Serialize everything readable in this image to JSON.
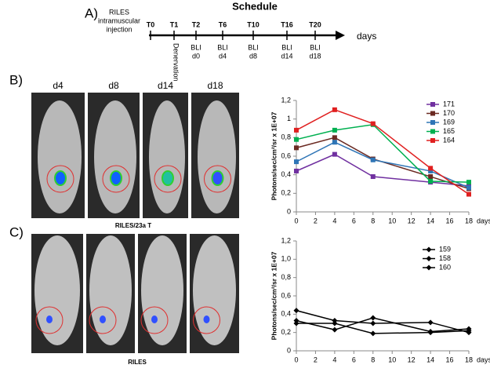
{
  "schedule": {
    "label": "A)",
    "title": "Schedule",
    "injection": [
      "RILES",
      "intramuscular",
      "injection"
    ],
    "timepoints": [
      "T0",
      "T1",
      "T2",
      "T6",
      "T10",
      "T16",
      "T20"
    ],
    "denervation": "Denervation",
    "bli": [
      {
        "label": "BLI",
        "day": "d0"
      },
      {
        "label": "BLI",
        "day": "d4"
      },
      {
        "label": "BLI",
        "day": "d8"
      },
      {
        "label": "BLI",
        "day": "d14"
      },
      {
        "label": "BLI",
        "day": "d18"
      }
    ],
    "axis_label": "days"
  },
  "panels": {
    "b": {
      "label": "B)",
      "images": [
        "d4",
        "d8",
        "d14",
        "d18"
      ],
      "caption": "RILES/23a T"
    },
    "c": {
      "label": "C)",
      "caption": "RILES"
    }
  },
  "chart_data": [
    {
      "type": "line",
      "marker": "square",
      "ylabel": "Photons/sec/cm²/sr  x 1E+07",
      "xlabel": "days",
      "x": [
        0,
        4,
        8,
        14,
        18
      ],
      "xlim": [
        0,
        18
      ],
      "xticks": [
        0,
        2,
        4,
        6,
        8,
        10,
        12,
        14,
        16,
        18
      ],
      "ylim": [
        0,
        1.2
      ],
      "yticks": [
        0,
        {
          "value": 0.2,
          "label": "0,2"
        },
        {
          "value": 0.4,
          "label": "0,4"
        },
        {
          "value": 0.6,
          "label": "0,6"
        },
        {
          "value": 0.8,
          "label": "0,8"
        },
        1,
        {
          "value": 1.2,
          "label": "1,2"
        }
      ],
      "series": [
        {
          "name": "171",
          "color": "#7030a0",
          "values": [
            0.44,
            0.62,
            0.38,
            0.32,
            0.28
          ]
        },
        {
          "name": "170",
          "color": "#6b2a22",
          "values": [
            0.69,
            0.8,
            0.57,
            0.38,
            0.25
          ]
        },
        {
          "name": "169",
          "color": "#2e75b6",
          "values": [
            0.54,
            0.75,
            0.56,
            0.44,
            0.26
          ]
        },
        {
          "name": "165",
          "color": "#00b050",
          "values": [
            0.78,
            0.88,
            0.94,
            0.33,
            0.32
          ]
        },
        {
          "name": "164",
          "color": "#e02020",
          "values": [
            0.88,
            1.1,
            0.95,
            0.47,
            0.19
          ]
        }
      ]
    },
    {
      "type": "line",
      "marker": "diamond",
      "ylabel": "Photons/sec/cm²/sr  x 1E+07",
      "xlabel": "days",
      "x": [
        0,
        4,
        8,
        14,
        18
      ],
      "xlim": [
        0,
        18
      ],
      "xticks": [
        0,
        2,
        4,
        6,
        8,
        10,
        12,
        14,
        16,
        18
      ],
      "ylim": [
        0,
        1.2
      ],
      "yticks": [
        0,
        {
          "value": 0.2,
          "label": "0,2"
        },
        {
          "value": 0.4,
          "label": "0,4"
        },
        {
          "value": 0.6,
          "label": "0,6"
        },
        {
          "value": 0.8,
          "label": "0,8"
        },
        {
          "value": 1.0,
          "label": "1,0"
        },
        {
          "value": 1.2,
          "label": "1,2"
        }
      ],
      "series": [
        {
          "name": "159",
          "color": "#000000",
          "values": [
            0.44,
            0.33,
            0.3,
            0.31,
            0.2
          ]
        },
        {
          "name": "158",
          "color": "#000000",
          "values": [
            0.33,
            0.23,
            0.36,
            0.21,
            0.24
          ]
        },
        {
          "name": "160",
          "color": "#000000",
          "values": [
            0.3,
            0.3,
            0.19,
            0.2,
            0.22
          ]
        }
      ]
    }
  ]
}
